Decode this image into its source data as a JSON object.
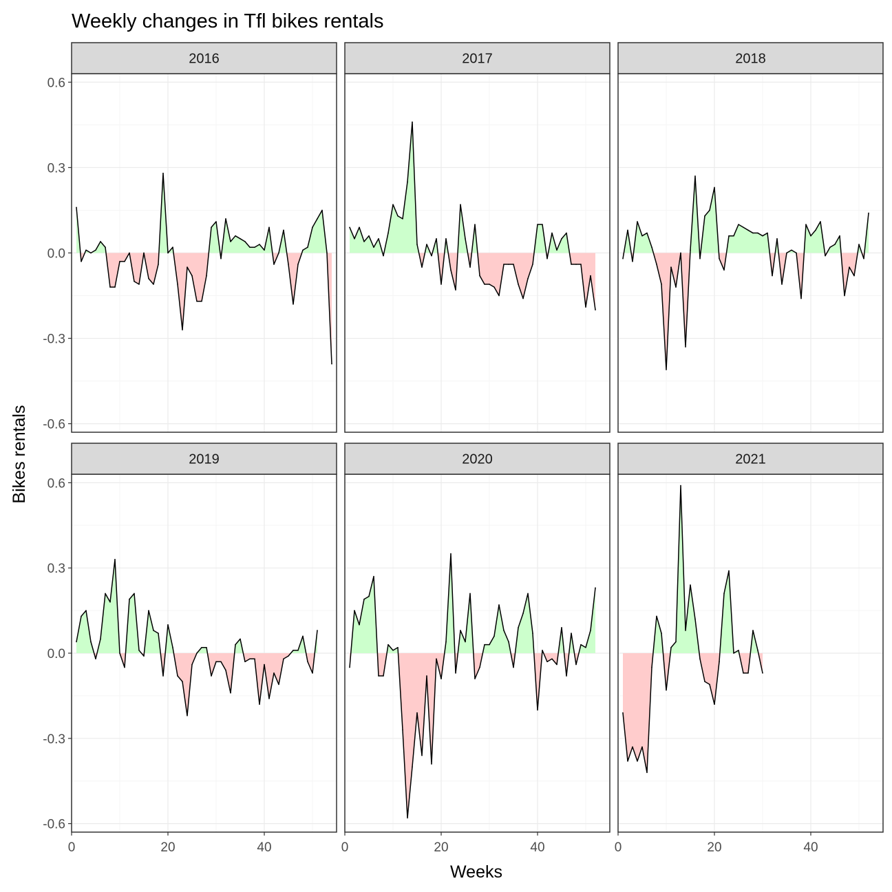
{
  "chart_data": {
    "type": "area",
    "title": "Weekly changes in Tfl bikes rentals",
    "xlabel": "Weeks",
    "ylabel": "Bikes rentals",
    "xlim": [
      0,
      55
    ],
    "ylim": [
      -0.63,
      0.63
    ],
    "x_ticks": [
      0,
      20,
      40
    ],
    "y_ticks": [
      0.6,
      0.3,
      0.0,
      -0.3,
      -0.6
    ],
    "y_tick_labels": [
      "0.6",
      "0.3",
      "0.0",
      "-0.3",
      "-0.6"
    ],
    "grid": true,
    "facet_layout": {
      "rows": 2,
      "cols": 3
    },
    "colors": {
      "positive_fill": "#ccffcc",
      "negative_fill": "#ffcccc",
      "line": "#000000",
      "strip_fill": "#d9d9d9",
      "grid_major": "#ebebeb",
      "grid_minor": "#f5f5f5",
      "panel_border": "#333333"
    },
    "facets": [
      {
        "label": "2016",
        "x_start": 1,
        "values": [
          0.16,
          -0.03,
          0.01,
          0.0,
          0.01,
          0.04,
          0.02,
          -0.12,
          -0.12,
          -0.03,
          -0.03,
          0.0,
          -0.1,
          -0.11,
          0.0,
          -0.09,
          -0.11,
          -0.04,
          0.28,
          0.0,
          0.02,
          -0.11,
          -0.27,
          -0.05,
          -0.08,
          -0.17,
          -0.17,
          -0.08,
          0.09,
          0.11,
          -0.02,
          0.12,
          0.04,
          0.06,
          0.05,
          0.04,
          0.02,
          0.02,
          0.03,
          0.01,
          0.09,
          -0.04,
          0.0,
          0.08,
          -0.04,
          -0.18,
          -0.04,
          0.01,
          0.02,
          0.09,
          0.12,
          0.15,
          0.0,
          -0.39
        ]
      },
      {
        "label": "2017",
        "x_start": 1,
        "values": [
          0.09,
          0.05,
          0.09,
          0.04,
          0.06,
          0.02,
          0.05,
          -0.01,
          0.07,
          0.17,
          0.13,
          0.12,
          0.25,
          0.46,
          0.03,
          -0.05,
          0.03,
          -0.01,
          0.05,
          -0.11,
          0.05,
          -0.06,
          -0.13,
          0.17,
          0.05,
          -0.05,
          0.1,
          -0.08,
          -0.11,
          -0.11,
          -0.12,
          -0.15,
          -0.04,
          -0.04,
          -0.04,
          -0.11,
          -0.16,
          -0.09,
          -0.04,
          0.1,
          0.1,
          -0.02,
          0.07,
          0.01,
          0.05,
          0.07,
          -0.04,
          -0.04,
          -0.04,
          -0.19,
          -0.08,
          -0.2
        ]
      },
      {
        "label": "2018",
        "x_start": 1,
        "values": [
          -0.02,
          0.08,
          -0.03,
          0.11,
          0.06,
          0.07,
          0.02,
          -0.04,
          -0.11,
          -0.41,
          -0.05,
          -0.12,
          0.0,
          -0.33,
          0.01,
          0.27,
          -0.02,
          0.13,
          0.15,
          0.23,
          -0.02,
          -0.06,
          0.06,
          0.06,
          0.1,
          0.09,
          0.08,
          0.07,
          0.07,
          0.06,
          0.07,
          -0.08,
          0.05,
          -0.11,
          0.0,
          0.01,
          0.0,
          -0.16,
          0.1,
          0.06,
          0.08,
          0.11,
          -0.01,
          0.02,
          0.03,
          0.06,
          -0.15,
          -0.05,
          -0.08,
          0.03,
          -0.02,
          0.14
        ]
      },
      {
        "label": "2019",
        "x_start": 1,
        "values": [
          0.04,
          0.13,
          0.15,
          0.04,
          -0.02,
          0.05,
          0.21,
          0.18,
          0.33,
          0.0,
          -0.05,
          0.19,
          0.21,
          0.01,
          -0.01,
          0.15,
          0.08,
          0.07,
          -0.08,
          0.1,
          0.02,
          -0.08,
          -0.1,
          -0.22,
          -0.04,
          0.0,
          0.02,
          0.02,
          -0.08,
          -0.03,
          -0.03,
          -0.06,
          -0.14,
          0.03,
          0.05,
          -0.03,
          -0.02,
          -0.02,
          -0.18,
          -0.04,
          -0.16,
          -0.07,
          -0.11,
          -0.02,
          -0.01,
          0.01,
          0.01,
          0.06,
          -0.03,
          -0.07,
          0.08
        ]
      },
      {
        "label": "2020",
        "x_start": 1,
        "values": [
          -0.05,
          0.15,
          0.1,
          0.19,
          0.2,
          0.27,
          -0.08,
          -0.08,
          0.03,
          0.01,
          0.02,
          -0.27,
          -0.58,
          -0.4,
          -0.21,
          -0.36,
          -0.08,
          -0.39,
          -0.02,
          -0.09,
          0.04,
          0.35,
          -0.07,
          0.08,
          0.04,
          0.21,
          -0.09,
          -0.05,
          0.03,
          0.03,
          0.06,
          0.17,
          0.08,
          0.04,
          -0.05,
          0.09,
          0.14,
          0.21,
          0.07,
          -0.2,
          0.01,
          -0.03,
          -0.02,
          -0.04,
          0.09,
          -0.08,
          0.07,
          -0.04,
          0.03,
          0.02,
          0.08,
          0.23
        ]
      },
      {
        "label": "2021",
        "x_start": 1,
        "values": [
          -0.21,
          -0.38,
          -0.33,
          -0.38,
          -0.33,
          -0.42,
          -0.05,
          0.13,
          0.07,
          -0.13,
          0.02,
          0.04,
          0.59,
          0.08,
          0.24,
          0.12,
          -0.02,
          -0.1,
          -0.11,
          -0.18,
          -0.03,
          0.21,
          0.29,
          0.0,
          0.01,
          -0.07,
          -0.07,
          0.08,
          0.01,
          -0.07
        ]
      }
    ]
  }
}
